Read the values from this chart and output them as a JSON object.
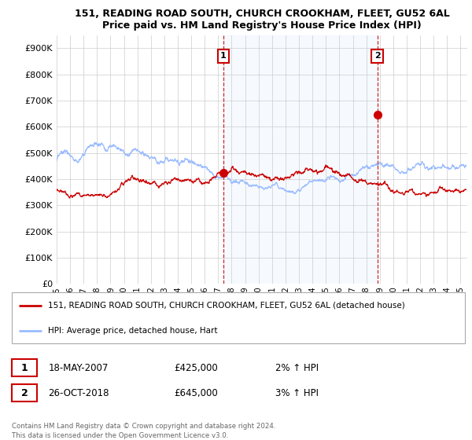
{
  "title1": "151, READING ROAD SOUTH, CHURCH CROOKHAM, FLEET, GU52 6AL",
  "title2": "Price paid vs. HM Land Registry's House Price Index (HPI)",
  "ylabel_ticks": [
    "£0",
    "£100K",
    "£200K",
    "£300K",
    "£400K",
    "£500K",
    "£600K",
    "£700K",
    "£800K",
    "£900K"
  ],
  "ytick_vals": [
    0,
    100000,
    200000,
    300000,
    400000,
    500000,
    600000,
    700000,
    800000,
    900000
  ],
  "ylim": [
    0,
    950000
  ],
  "xlim_start": 1995.0,
  "xlim_end": 2025.5,
  "xtick_years": [
    1995,
    1996,
    1997,
    1998,
    1999,
    2000,
    2001,
    2002,
    2003,
    2004,
    2005,
    2006,
    2007,
    2008,
    2009,
    2010,
    2011,
    2012,
    2013,
    2014,
    2015,
    2016,
    2017,
    2018,
    2019,
    2020,
    2021,
    2022,
    2023,
    2024,
    2025
  ],
  "hpi_color": "#99bbff",
  "price_color": "#cc0000",
  "shade_color": "#ddeeff",
  "marker1_year": 2007.38,
  "marker1_price": 425000,
  "marker2_year": 2018.82,
  "marker2_price": 645000,
  "legend_line1": "151, READING ROAD SOUTH, CHURCH CROOKHAM, FLEET, GU52 6AL (detached house)",
  "legend_line2": "HPI: Average price, detached house, Hart",
  "table_row1_num": "1",
  "table_row1_date": "18-MAY-2007",
  "table_row1_price": "£425,000",
  "table_row1_hpi": "2% ↑ HPI",
  "table_row2_num": "2",
  "table_row2_date": "26-OCT-2018",
  "table_row2_price": "£645,000",
  "table_row2_hpi": "3% ↑ HPI",
  "footer": "Contains HM Land Registry data © Crown copyright and database right 2024.\nThis data is licensed under the Open Government Licence v3.0.",
  "background_color": "#ffffff",
  "grid_color": "#cccccc"
}
